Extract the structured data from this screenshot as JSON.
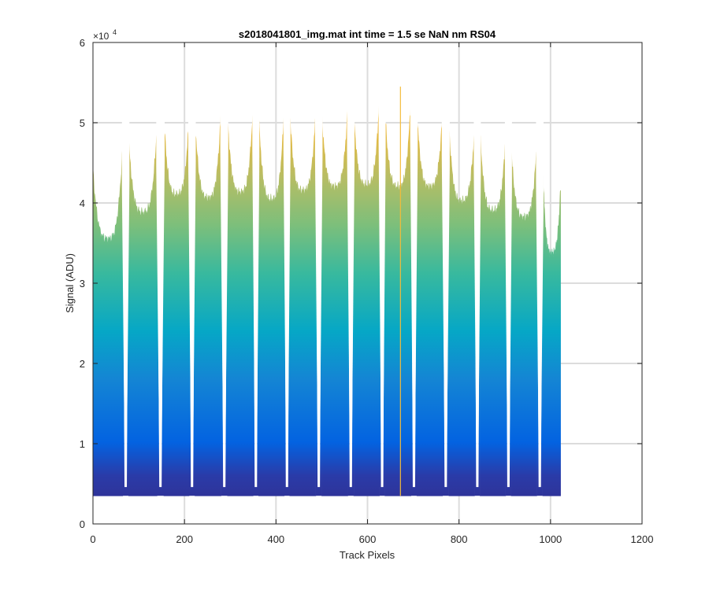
{
  "chart_data": {
    "type": "area",
    "title": "s2018041801_img.mat int time = 1.5 se  NaN nm RS04",
    "xlabel": "Track Pixels",
    "ylabel": "Signal (ADU)",
    "y_exponent_base": "×10",
    "y_exponent_power": "4",
    "xlim": [
      0,
      1200
    ],
    "ylim": [
      0,
      60000
    ],
    "xticks": [
      0,
      200,
      400,
      600,
      800,
      1000,
      1200
    ],
    "yticks": [
      0,
      10000,
      20000,
      30000,
      40000,
      50000,
      60000
    ],
    "xtick_labels": [
      "0",
      "200",
      "400",
      "600",
      "800",
      "1000",
      "1200"
    ],
    "ytick_labels": [
      "0",
      "1",
      "2",
      "3",
      "4",
      "5",
      "6"
    ],
    "grid": true,
    "baseline": 3500,
    "colormap": [
      "#352a87",
      "#0363e1",
      "#0ea1d3",
      "#33b6b2",
      "#7fc07a",
      "#d3b943",
      "#f9fb0e"
    ],
    "segments": [
      {
        "x_start": 0,
        "x_end": 65,
        "peak_left": 44000,
        "valley": 35500,
        "peak_right": 47000
      },
      {
        "x_start": 78,
        "x_end": 140,
        "peak_left": 47800,
        "valley": 38800,
        "peak_right": 49500
      },
      {
        "x_start": 155,
        "x_end": 210,
        "peak_left": 50500,
        "valley": 41000,
        "peak_right": 50300
      },
      {
        "x_start": 223,
        "x_end": 280,
        "peak_left": 50200,
        "valley": 40600,
        "peak_right": 51500
      },
      {
        "x_start": 294,
        "x_end": 350,
        "peak_left": 50600,
        "valley": 41300,
        "peak_right": 52000
      },
      {
        "x_start": 362,
        "x_end": 418,
        "peak_left": 51000,
        "valley": 40400,
        "peak_right": 51800
      },
      {
        "x_start": 430,
        "x_end": 487,
        "peak_left": 51500,
        "valley": 41500,
        "peak_right": 51300
      },
      {
        "x_start": 500,
        "x_end": 557,
        "peak_left": 51000,
        "valley": 42000,
        "peak_right": 52000
      },
      {
        "x_start": 570,
        "x_end": 626,
        "peak_left": 51000,
        "valley": 42200,
        "peak_right": 52800
      },
      {
        "x_start": 638,
        "x_end": 695,
        "peak_left": 51500,
        "valley": 42000,
        "peak_right": 53000
      },
      {
        "x_start": 708,
        "x_end": 764,
        "peak_left": 51300,
        "valley": 42000,
        "peak_right": 51000
      },
      {
        "x_start": 778,
        "x_end": 834,
        "peak_left": 49500,
        "valley": 40200,
        "peak_right": 49300
      },
      {
        "x_start": 846,
        "x_end": 902,
        "peak_left": 48800,
        "valley": 39000,
        "peak_right": 48300
      },
      {
        "x_start": 914,
        "x_end": 970,
        "peak_left": 46800,
        "valley": 38200,
        "peak_right": 47200
      },
      {
        "x_start": 983,
        "x_end": 1022,
        "peak_left": 44500,
        "valley": 33700,
        "peak_right": 42000
      }
    ],
    "spikes": [
      {
        "x": 672,
        "y": 54500
      }
    ]
  }
}
